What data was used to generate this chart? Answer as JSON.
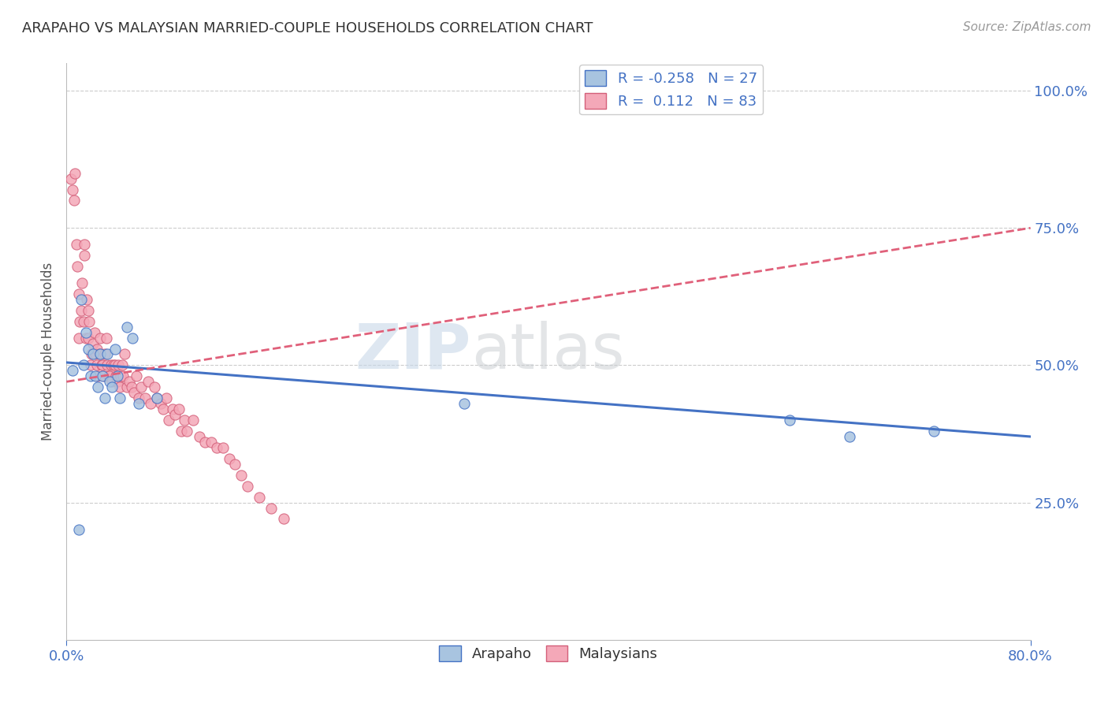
{
  "title": "ARAPAHO VS MALAYSIAN MARRIED-COUPLE HOUSEHOLDS CORRELATION CHART",
  "source": "Source: ZipAtlas.com",
  "ylabel": "Married-couple Households",
  "ytick_labels": [
    "25.0%",
    "50.0%",
    "75.0%",
    "100.0%"
  ],
  "ytick_values": [
    0.25,
    0.5,
    0.75,
    1.0
  ],
  "xmin": 0.0,
  "xmax": 0.8,
  "ymin": 0.0,
  "ymax": 1.05,
  "color_arapaho": "#a8c4e0",
  "color_malaysian": "#f4a8b8",
  "line_color_arapaho": "#4472c4",
  "line_color_malaysian": "#e0607a",
  "watermark_zip": "ZIP",
  "watermark_atlas": "atlas",
  "arapaho_x": [
    0.005,
    0.01,
    0.012,
    0.014,
    0.016,
    0.018,
    0.02,
    0.022,
    0.024,
    0.026,
    0.028,
    0.03,
    0.032,
    0.034,
    0.036,
    0.038,
    0.04,
    0.042,
    0.044,
    0.05,
    0.055,
    0.06,
    0.075,
    0.33,
    0.6,
    0.65,
    0.72
  ],
  "arapaho_y": [
    0.49,
    0.2,
    0.62,
    0.5,
    0.56,
    0.53,
    0.48,
    0.52,
    0.48,
    0.46,
    0.52,
    0.48,
    0.44,
    0.52,
    0.47,
    0.46,
    0.53,
    0.48,
    0.44,
    0.57,
    0.55,
    0.43,
    0.44,
    0.43,
    0.4,
    0.37,
    0.38
  ],
  "malaysian_x": [
    0.004,
    0.005,
    0.006,
    0.007,
    0.008,
    0.009,
    0.01,
    0.01,
    0.011,
    0.012,
    0.013,
    0.014,
    0.015,
    0.015,
    0.016,
    0.017,
    0.018,
    0.018,
    0.019,
    0.02,
    0.021,
    0.022,
    0.023,
    0.024,
    0.025,
    0.025,
    0.026,
    0.027,
    0.028,
    0.029,
    0.03,
    0.031,
    0.032,
    0.033,
    0.034,
    0.035,
    0.036,
    0.037,
    0.038,
    0.039,
    0.04,
    0.041,
    0.042,
    0.043,
    0.044,
    0.045,
    0.046,
    0.047,
    0.048,
    0.05,
    0.052,
    0.054,
    0.056,
    0.058,
    0.06,
    0.062,
    0.065,
    0.068,
    0.07,
    0.073,
    0.075,
    0.078,
    0.08,
    0.083,
    0.085,
    0.088,
    0.09,
    0.093,
    0.095,
    0.098,
    0.1,
    0.105,
    0.11,
    0.115,
    0.12,
    0.125,
    0.13,
    0.135,
    0.14,
    0.145,
    0.15,
    0.16,
    0.17,
    0.18
  ],
  "malaysian_y": [
    0.84,
    0.82,
    0.8,
    0.85,
    0.72,
    0.68,
    0.63,
    0.55,
    0.58,
    0.6,
    0.65,
    0.58,
    0.7,
    0.72,
    0.55,
    0.62,
    0.6,
    0.55,
    0.58,
    0.5,
    0.52,
    0.54,
    0.56,
    0.52,
    0.5,
    0.53,
    0.48,
    0.52,
    0.55,
    0.5,
    0.5,
    0.48,
    0.52,
    0.55,
    0.5,
    0.48,
    0.48,
    0.5,
    0.47,
    0.5,
    0.5,
    0.48,
    0.47,
    0.5,
    0.46,
    0.48,
    0.5,
    0.48,
    0.52,
    0.46,
    0.47,
    0.46,
    0.45,
    0.48,
    0.44,
    0.46,
    0.44,
    0.47,
    0.43,
    0.46,
    0.44,
    0.43,
    0.42,
    0.44,
    0.4,
    0.42,
    0.41,
    0.42,
    0.38,
    0.4,
    0.38,
    0.4,
    0.37,
    0.36,
    0.36,
    0.35,
    0.35,
    0.33,
    0.32,
    0.3,
    0.28,
    0.26,
    0.24,
    0.22
  ]
}
